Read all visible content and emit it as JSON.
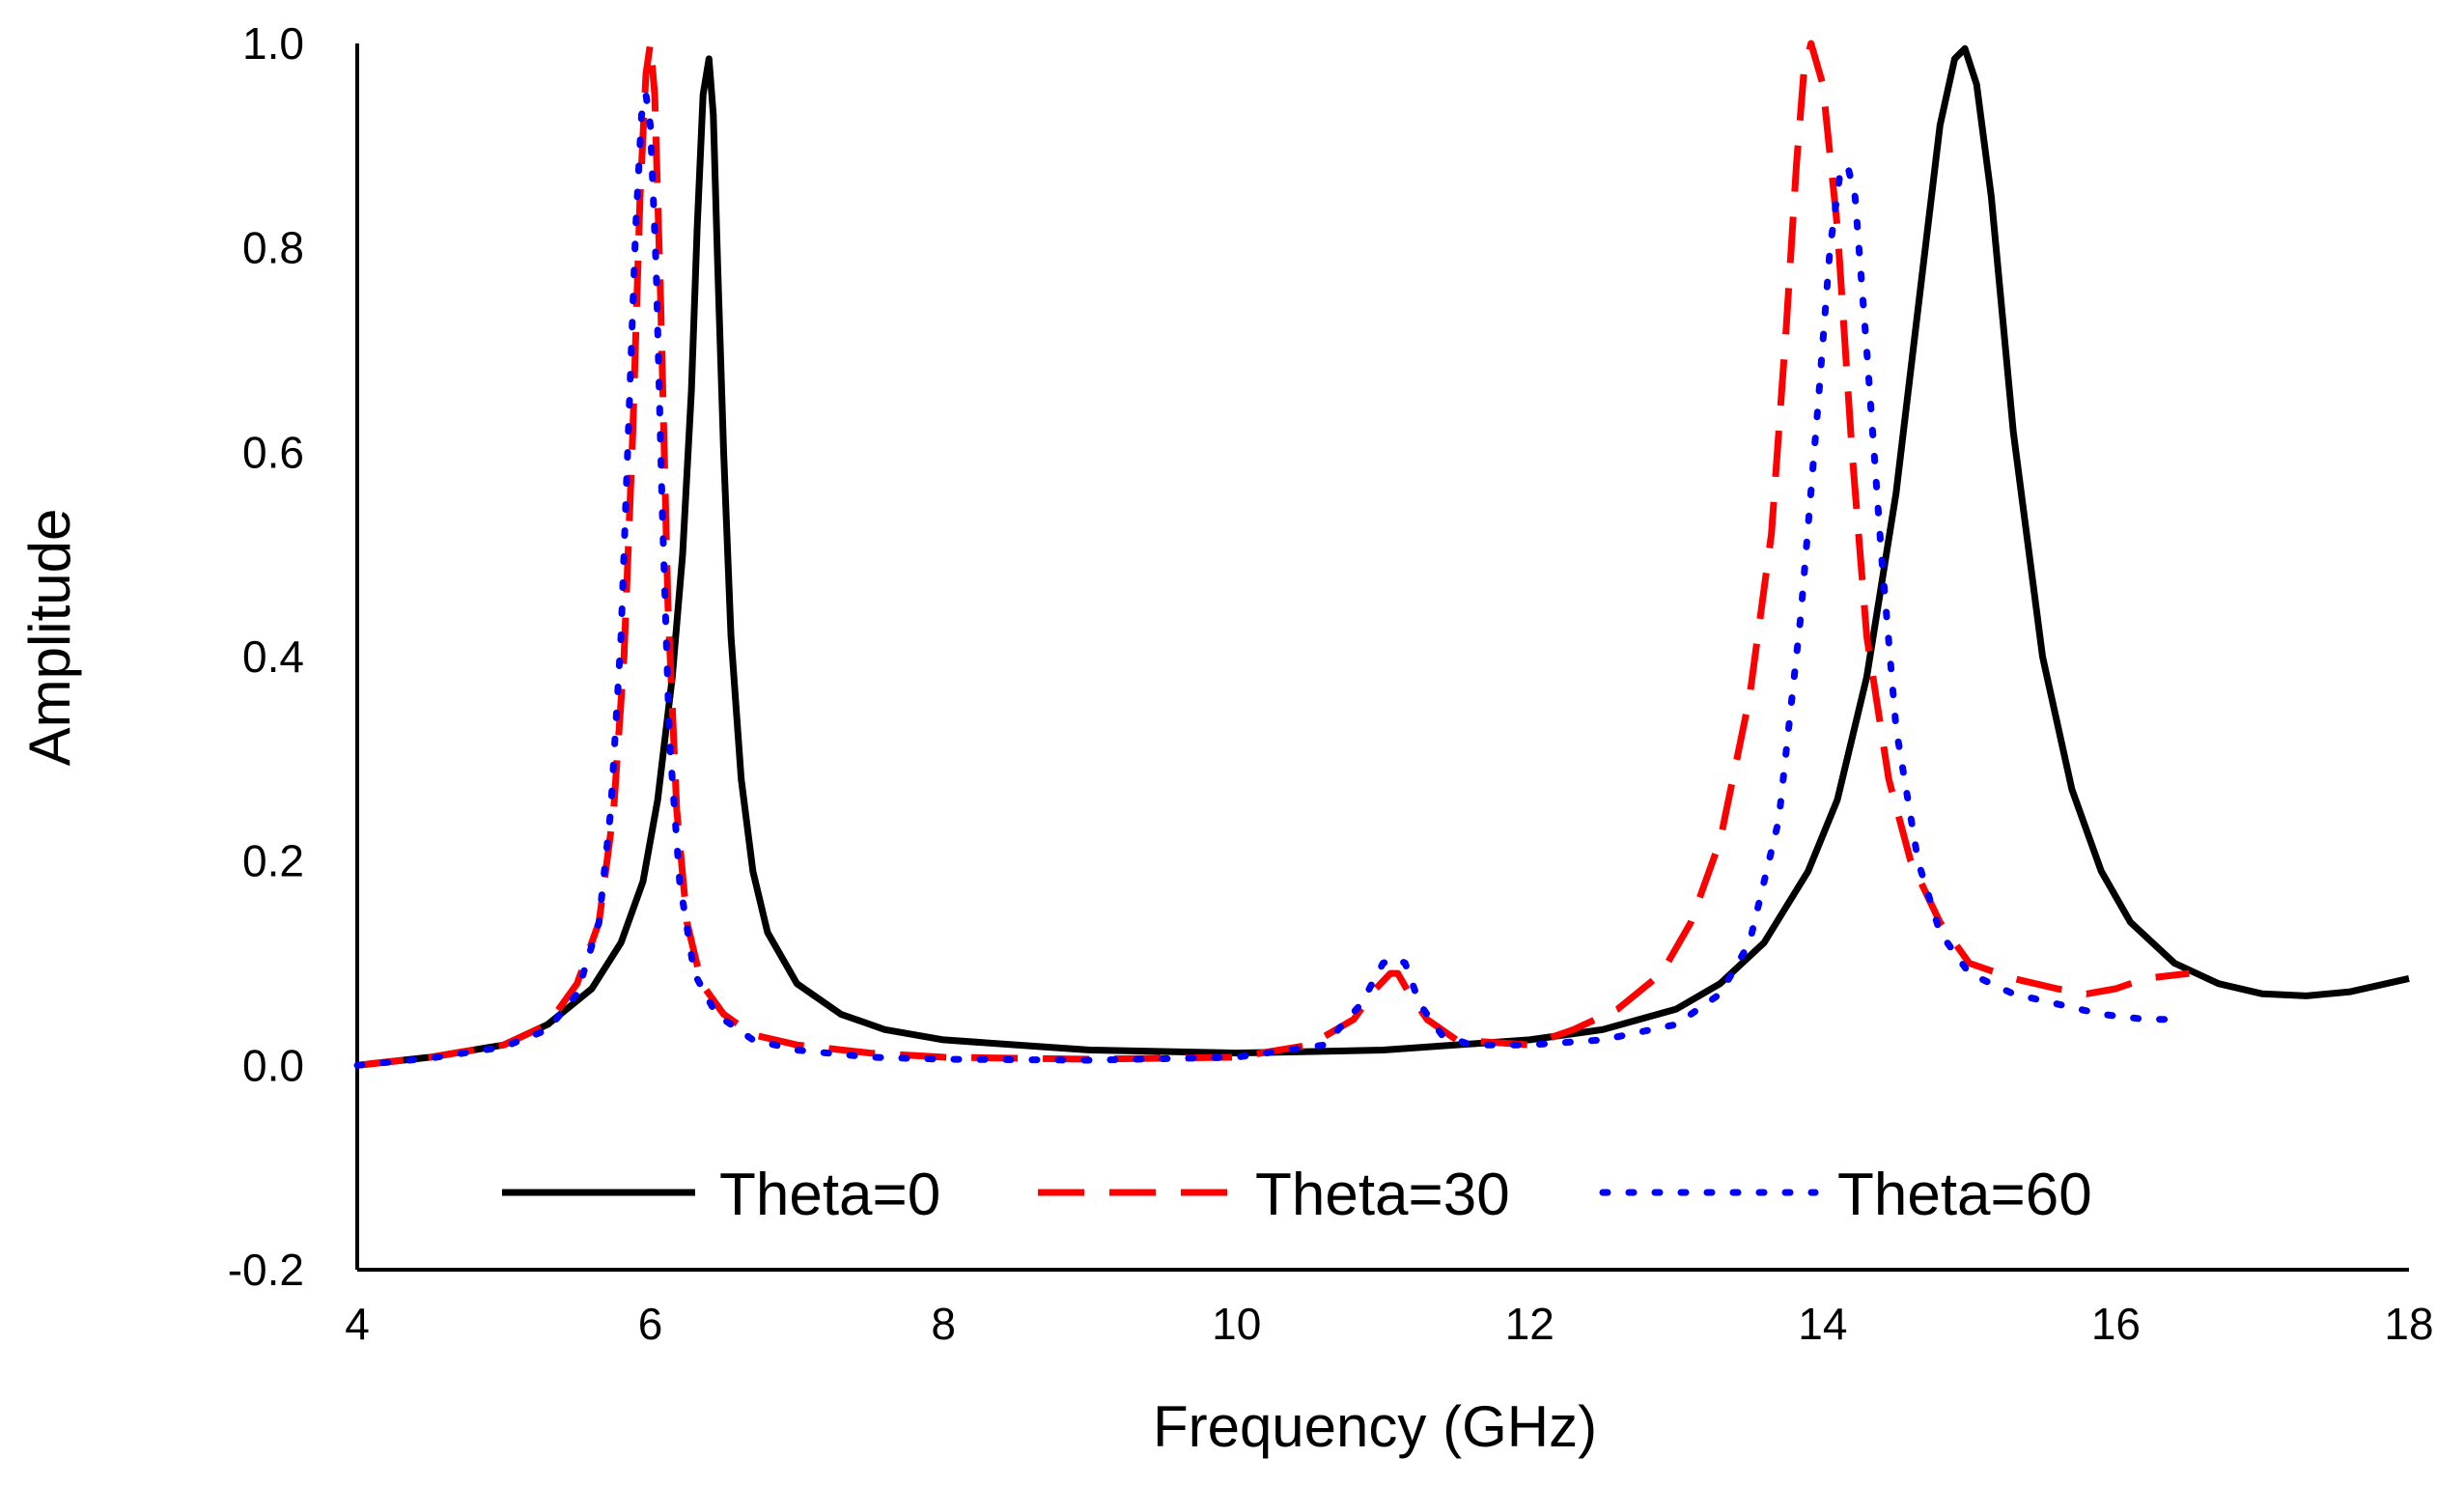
{
  "chart_data": {
    "type": "line",
    "title": "",
    "xlabel": "Frequency (GHz)",
    "ylabel": "Amplitude",
    "xlim": [
      4,
      18
    ],
    "ylim": [
      -0.2,
      1.0
    ],
    "xticks": [
      4,
      6,
      8,
      10,
      12,
      14,
      16,
      18
    ],
    "yticks": [
      -0.2,
      0.0,
      0.2,
      0.4,
      0.6,
      0.8,
      1.0
    ],
    "ytick_labels": [
      "-0.2",
      "0.0",
      "0.2",
      "0.4",
      "0.6",
      "0.8",
      "1.0"
    ],
    "legend_position": "bottom",
    "series": [
      {
        "name": "Theta=0",
        "color": "#000000",
        "style": "solid",
        "x": [
          4.0,
          4.5,
          5.0,
          5.3,
          5.6,
          5.8,
          5.95,
          6.05,
          6.15,
          6.22,
          6.28,
          6.32,
          6.36,
          6.4,
          6.43,
          6.46,
          6.5,
          6.55,
          6.62,
          6.7,
          6.8,
          7.0,
          7.3,
          7.6,
          8.0,
          8.5,
          9.0,
          10.0,
          11.0,
          12.0,
          12.5,
          13.0,
          13.3,
          13.6,
          13.9,
          14.1,
          14.3,
          14.5,
          14.65,
          14.8,
          14.9,
          14.97,
          15.05,
          15.15,
          15.3,
          15.5,
          15.7,
          15.9,
          16.1,
          16.4,
          16.7,
          17.0,
          17.3,
          17.6,
          18.0
        ],
        "y": [
          0.0,
          0.008,
          0.02,
          0.04,
          0.075,
          0.12,
          0.18,
          0.26,
          0.38,
          0.5,
          0.66,
          0.82,
          0.95,
          0.985,
          0.93,
          0.78,
          0.6,
          0.42,
          0.28,
          0.19,
          0.13,
          0.08,
          0.05,
          0.035,
          0.025,
          0.02,
          0.015,
          0.012,
          0.015,
          0.025,
          0.035,
          0.055,
          0.08,
          0.12,
          0.19,
          0.26,
          0.38,
          0.56,
          0.74,
          0.92,
          0.985,
          0.995,
          0.96,
          0.85,
          0.62,
          0.4,
          0.27,
          0.19,
          0.14,
          0.1,
          0.08,
          0.07,
          0.068,
          0.072,
          0.085
        ]
      },
      {
        "name": "Theta=30",
        "color": "#ff0000",
        "style": "dashed",
        "x": [
          4.0,
          4.5,
          5.0,
          5.3,
          5.5,
          5.65,
          5.75,
          5.82,
          5.88,
          5.93,
          5.97,
          6.0,
          6.03,
          6.07,
          6.12,
          6.18,
          6.25,
          6.35,
          6.5,
          6.7,
          7.0,
          7.5,
          8.0,
          9.0,
          10.0,
          10.5,
          10.8,
          10.95,
          11.05,
          11.1,
          11.18,
          11.3,
          11.5,
          12.0,
          12.3,
          12.6,
          12.9,
          13.1,
          13.3,
          13.5,
          13.65,
          13.75,
          13.82,
          13.87,
          13.92,
          14.0,
          14.1,
          14.2,
          14.3,
          14.45,
          14.6,
          14.8,
          15.0,
          15.3,
          15.6,
          15.8,
          16.0,
          16.2,
          16.5
        ],
        "y": [
          0.0,
          0.008,
          0.02,
          0.04,
          0.08,
          0.14,
          0.25,
          0.4,
          0.62,
          0.85,
          0.97,
          1.0,
          0.95,
          0.75,
          0.45,
          0.25,
          0.14,
          0.08,
          0.05,
          0.03,
          0.02,
          0.012,
          0.008,
          0.006,
          0.008,
          0.02,
          0.045,
          0.075,
          0.09,
          0.09,
          0.07,
          0.045,
          0.025,
          0.02,
          0.035,
          0.055,
          0.09,
          0.14,
          0.22,
          0.36,
          0.52,
          0.72,
          0.88,
          0.97,
          1.0,
          0.96,
          0.82,
          0.6,
          0.42,
          0.28,
          0.2,
          0.14,
          0.1,
          0.085,
          0.075,
          0.07,
          0.075,
          0.085,
          0.09
        ]
      },
      {
        "name": "Theta=60",
        "color": "#0000ff",
        "style": "dotted",
        "x": [
          4.0,
          4.5,
          5.0,
          5.3,
          5.5,
          5.65,
          5.73,
          5.8,
          5.85,
          5.9,
          5.94,
          5.97,
          6.0,
          6.04,
          6.08,
          6.13,
          6.2,
          6.3,
          6.45,
          6.7,
          7.0,
          7.5,
          8.0,
          9.0,
          10.0,
          10.6,
          10.85,
          11.0,
          11.08,
          11.15,
          11.25,
          11.4,
          11.6,
          12.0,
          12.5,
          13.0,
          13.3,
          13.5,
          13.7,
          13.85,
          13.97,
          14.05,
          14.12,
          14.17,
          14.22,
          14.3,
          14.4,
          14.5,
          14.65,
          14.8,
          15.0,
          15.3,
          15.6,
          15.9,
          16.2,
          16.4
        ],
        "y": [
          0.0,
          0.007,
          0.018,
          0.035,
          0.07,
          0.14,
          0.25,
          0.42,
          0.62,
          0.82,
          0.93,
          0.95,
          0.92,
          0.78,
          0.55,
          0.32,
          0.18,
          0.09,
          0.05,
          0.025,
          0.015,
          0.008,
          0.006,
          0.005,
          0.008,
          0.02,
          0.06,
          0.1,
          0.105,
          0.1,
          0.06,
          0.03,
          0.02,
          0.02,
          0.025,
          0.04,
          0.07,
          0.12,
          0.24,
          0.44,
          0.65,
          0.8,
          0.875,
          0.88,
          0.85,
          0.7,
          0.5,
          0.33,
          0.2,
          0.13,
          0.09,
          0.07,
          0.06,
          0.05,
          0.045,
          0.045
        ]
      }
    ]
  }
}
